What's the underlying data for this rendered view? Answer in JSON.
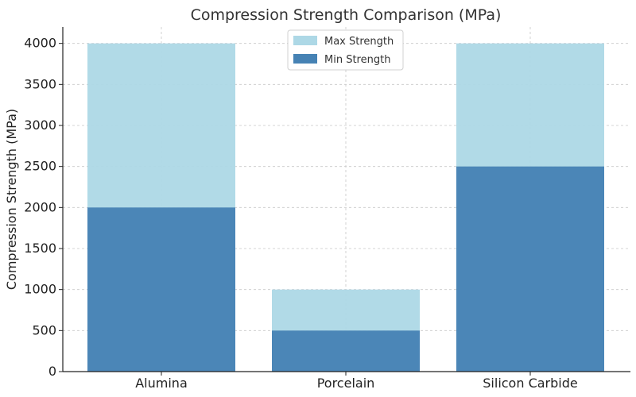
{
  "chart_data": {
    "type": "bar",
    "title": "Compression Strength Comparison (MPa)",
    "xlabel": "",
    "ylabel": "Compression Strength (MPa)",
    "categories": [
      "Alumina",
      "Porcelain",
      "Silicon Carbide"
    ],
    "series": [
      {
        "name": "Max Strength",
        "values": [
          4000,
          1000,
          4000
        ],
        "color": "#add8e6"
      },
      {
        "name": "Min Strength",
        "values": [
          2000,
          500,
          2500
        ],
        "color": "#4682b4"
      }
    ],
    "overlay": true,
    "ylim": [
      0,
      4200
    ],
    "yticks": [
      0,
      500,
      1000,
      1500,
      2000,
      2500,
      3000,
      3500,
      4000
    ],
    "grid": true,
    "legend": "top-center"
  }
}
